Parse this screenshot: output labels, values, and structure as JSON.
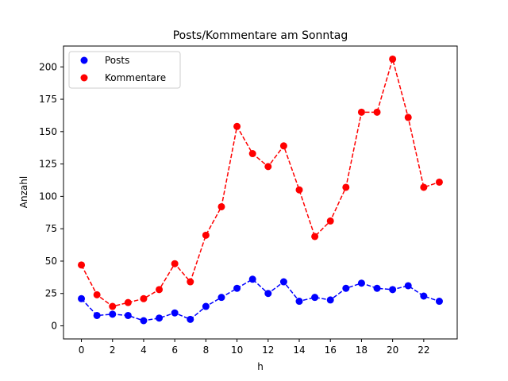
{
  "chart_data": {
    "type": "line",
    "title": "Posts/Kommentare am Sonntag",
    "xlabel": "h",
    "ylabel": "Anzahl",
    "x": [
      0,
      1,
      2,
      3,
      4,
      5,
      6,
      7,
      8,
      9,
      10,
      11,
      12,
      13,
      14,
      15,
      16,
      17,
      18,
      19,
      20,
      21,
      22,
      23
    ],
    "xlim": [
      -1.15,
      24.15
    ],
    "ylim": [
      -10.1,
      216.1
    ],
    "xticks": [
      0,
      2,
      4,
      6,
      8,
      10,
      12,
      14,
      16,
      18,
      20,
      22
    ],
    "yticks": [
      0,
      25,
      50,
      75,
      100,
      125,
      150,
      175,
      200
    ],
    "grid": false,
    "legend": "top-left",
    "series": [
      {
        "name": "Posts",
        "color": "#0000ff",
        "style": "dashed-with-dots",
        "values": [
          21,
          8,
          9,
          8,
          4,
          6,
          10,
          5,
          15,
          22,
          29,
          36,
          25,
          34,
          19,
          22,
          20,
          29,
          33,
          29,
          28,
          31,
          23,
          19
        ]
      },
      {
        "name": "Kommentare",
        "color": "#ff0000",
        "style": "dashed-with-dots",
        "values": [
          47,
          24,
          15,
          18,
          21,
          28,
          48,
          34,
          70,
          92,
          154,
          133,
          123,
          139,
          105,
          69,
          81,
          107,
          165,
          165,
          206,
          161,
          107,
          111
        ]
      }
    ]
  }
}
